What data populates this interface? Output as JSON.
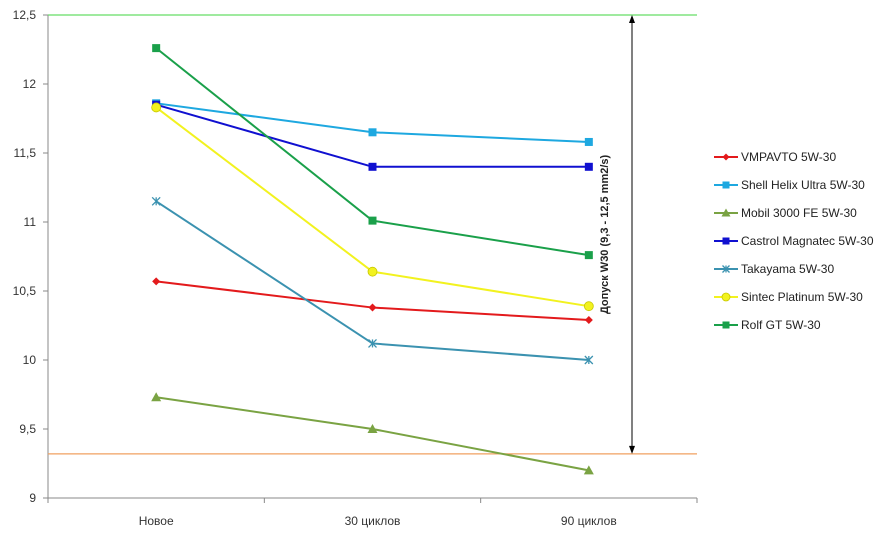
{
  "chart_data": {
    "type": "line",
    "categories": [
      "Новое",
      "30 циклов",
      "90 циклов"
    ],
    "ylim": [
      9,
      12.5
    ],
    "yticks": [
      "9",
      "9,5",
      "10",
      "10,5",
      "11",
      "11,5",
      "12",
      "12,5"
    ],
    "grid": false,
    "legend_position": "right",
    "series": [
      {
        "name": "VMPAVTO 5W-30",
        "values": [
          10.57,
          10.38,
          10.29
        ],
        "color": "#e31a1c",
        "marker": "diamond"
      },
      {
        "name": "Shell Helix Ultra 5W-30",
        "values": [
          11.86,
          11.65,
          11.58
        ],
        "color": "#1ea8e0",
        "marker": "square"
      },
      {
        "name": "Mobil 3000 FE 5W-30",
        "values": [
          9.73,
          9.5,
          9.2
        ],
        "color": "#7aa343",
        "marker": "triangle"
      },
      {
        "name": "Castrol Magnatec 5W-30",
        "values": [
          11.85,
          11.4,
          11.4
        ],
        "color": "#1010d0",
        "marker": "square"
      },
      {
        "name": "Takayama 5W-30",
        "values": [
          11.15,
          10.12,
          10.0
        ],
        "color": "#3b92b0",
        "marker": "star"
      },
      {
        "name": "Sintec Platinum 5W-30",
        "values": [
          11.83,
          10.64,
          10.39
        ],
        "color": "#f2f21f",
        "marker": "circle"
      },
      {
        "name": "Rolf GT 5W-30",
        "values": [
          12.26,
          11.01,
          10.76
        ],
        "color": "#1aa04a",
        "marker": "square"
      }
    ],
    "reference_lines": [
      {
        "value": 12.5,
        "color": "#66dd66"
      },
      {
        "value": 9.32,
        "color": "#f0a060"
      }
    ],
    "annotation": {
      "text": "Допуск W30 (9,3 - 12,5 mm2/s)",
      "from": 9.32,
      "to": 12.5
    }
  }
}
